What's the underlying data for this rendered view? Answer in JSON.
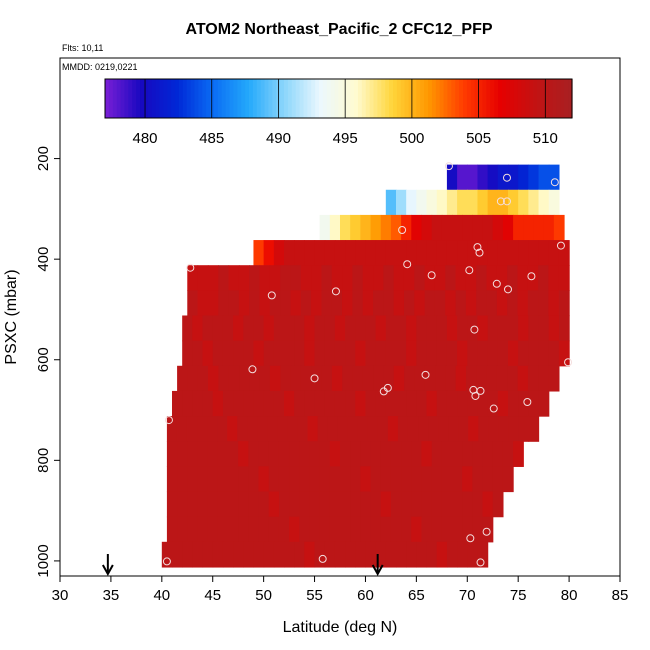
{
  "chart_data": {
    "type": "heatmap",
    "title": "ATOM2 Northeast_Pacific_2 CFC12_PFP",
    "flights_note": "Flts: 10,11",
    "date_note": "MMDD: 0219,0221",
    "xlabel": "Latitude (deg N)",
    "ylabel": "PSXC (mbar)",
    "xlim": [
      30,
      85
    ],
    "ylim": [
      1030,
      0
    ],
    "x_ticks": [
      30,
      35,
      40,
      45,
      50,
      55,
      60,
      65,
      70,
      75,
      80,
      85
    ],
    "y_ticks": [
      200,
      400,
      600,
      800,
      1000
    ],
    "colorbar": {
      "min": 477,
      "max": 512,
      "ticks": [
        480,
        485,
        490,
        495,
        500,
        505,
        510
      ],
      "colors": [
        "#7a1fd6",
        "#1808c0",
        "#0027d6",
        "#0a6cf4",
        "#24a9fb",
        "#8cd6fb",
        "#ecf8fe",
        "#fffbcf",
        "#ffd53a",
        "#ff9800",
        "#ff3b00",
        "#e60000",
        "#c21313",
        "#a82022"
      ]
    },
    "bands": [
      {
        "p_top": 212,
        "p_bot": 262,
        "lat_start": 68.0,
        "lat_end": 79.0,
        "values": [
          480,
          478,
          478,
          479,
          480,
          481,
          481,
          482,
          483,
          484,
          484
        ]
      },
      {
        "p_top": 262,
        "p_bot": 312,
        "lat_start": 62.0,
        "lat_end": 79.0,
        "values": [
          489,
          491,
          493,
          494,
          495,
          496,
          497,
          498,
          498,
          499,
          500,
          500,
          499,
          498,
          497,
          496,
          495
        ]
      },
      {
        "p_top": 312,
        "p_bot": 362,
        "lat_start": 55.5,
        "lat_end": 79.5,
        "values": [
          494,
          496,
          498,
          499,
          500,
          501,
          502,
          503,
          505,
          507,
          508,
          509,
          509,
          509,
          509,
          509,
          509,
          508,
          507,
          505,
          505,
          505,
          505,
          504
        ]
      },
      {
        "p_top": 362,
        "p_bot": 412,
        "lat_start": 49.0,
        "lat_end": 80.0,
        "values": [
          504,
          506,
          508,
          509,
          509,
          509,
          509,
          509,
          509,
          509,
          509,
          509,
          509,
          509,
          509,
          509,
          509,
          509,
          509,
          509,
          509,
          509,
          509,
          509,
          509,
          509,
          509,
          509,
          509,
          509,
          509
        ]
      },
      {
        "p_top": 412,
        "p_bot": 462,
        "lat_start": 42.5,
        "lat_end": 80.0,
        "values": [
          509,
          509,
          509,
          510,
          509,
          509,
          510,
          509,
          509,
          510,
          510,
          509,
          509,
          510,
          509,
          509,
          510,
          509,
          509,
          510,
          509,
          509,
          510,
          509,
          509,
          510,
          509,
          509,
          510,
          509,
          509,
          510,
          509,
          509,
          510,
          509,
          509
        ]
      },
      {
        "p_top": 462,
        "p_bot": 512,
        "lat_start": 42.5,
        "lat_end": 80.0,
        "values": [
          510,
          509,
          509,
          510,
          510,
          509,
          510,
          509,
          510,
          510,
          509,
          510,
          509,
          510,
          510,
          509,
          510,
          509,
          510,
          510,
          509,
          510,
          509,
          510,
          510,
          509,
          510,
          509,
          510,
          510,
          509,
          510,
          509,
          510,
          510,
          509,
          510
        ]
      },
      {
        "p_top": 512,
        "p_bot": 562,
        "lat_start": 42.0,
        "lat_end": 80.0,
        "values": [
          510,
          509,
          510,
          510,
          510,
          509,
          510,
          510,
          509,
          510,
          510,
          510,
          509,
          510,
          510,
          509,
          510,
          510,
          510,
          509,
          510,
          510,
          509,
          510,
          510,
          510,
          509,
          510,
          510,
          509,
          510,
          510,
          510,
          509,
          510,
          510,
          509,
          510
        ]
      },
      {
        "p_top": 562,
        "p_bot": 612,
        "lat_start": 42.0,
        "lat_end": 80.0,
        "values": [
          510,
          510,
          509,
          510,
          510,
          510,
          510,
          509,
          510,
          510,
          510,
          510,
          509,
          510,
          510,
          510,
          510,
          509,
          510,
          510,
          510,
          510,
          509,
          510,
          510,
          510,
          510,
          509,
          510,
          510,
          510,
          510,
          509,
          510,
          510,
          510,
          510,
          509
        ]
      },
      {
        "p_top": 612,
        "p_bot": 662,
        "lat_start": 41.5,
        "lat_end": 79.0,
        "values": [
          510,
          510,
          510,
          509,
          510,
          510,
          510,
          510,
          510,
          509,
          510,
          510,
          510,
          510,
          510,
          509,
          510,
          510,
          510,
          510,
          510,
          509,
          510,
          510,
          510,
          510,
          510,
          509,
          510,
          510,
          510,
          510,
          510,
          509,
          510,
          510,
          510
        ]
      },
      {
        "p_top": 662,
        "p_bot": 712,
        "lat_start": 41.0,
        "lat_end": 78.0,
        "values": [
          510,
          510,
          510,
          510,
          509,
          510,
          510,
          510,
          510,
          510,
          510,
          509,
          510,
          510,
          510,
          510,
          510,
          510,
          509,
          510,
          510,
          510,
          510,
          510,
          510,
          509,
          510,
          510,
          510,
          510,
          510,
          510,
          509,
          510,
          510,
          510,
          510
        ]
      },
      {
        "p_top": 712,
        "p_bot": 762,
        "lat_start": 40.5,
        "lat_end": 77.0,
        "values": [
          510,
          510,
          510,
          510,
          510,
          510,
          509,
          510,
          510,
          510,
          510,
          510,
          510,
          510,
          509,
          510,
          510,
          510,
          510,
          510,
          510,
          510,
          509,
          510,
          510,
          510,
          510,
          510,
          510,
          510,
          509,
          510,
          510,
          510,
          510,
          510,
          510
        ]
      },
      {
        "p_top": 762,
        "p_bot": 812,
        "lat_start": 40.5,
        "lat_end": 75.5,
        "values": [
          510,
          510,
          510,
          510,
          510,
          510,
          510,
          509,
          510,
          510,
          510,
          510,
          510,
          510,
          510,
          510,
          509,
          510,
          510,
          510,
          510,
          510,
          510,
          510,
          510,
          509,
          510,
          510,
          510,
          510,
          510,
          510,
          510,
          510,
          509
        ]
      },
      {
        "p_top": 812,
        "p_bot": 862,
        "lat_start": 40.5,
        "lat_end": 74.5,
        "values": [
          510,
          510,
          510,
          510,
          510,
          510,
          510,
          510,
          510,
          509,
          510,
          510,
          510,
          510,
          510,
          510,
          510,
          510,
          510,
          509,
          510,
          510,
          510,
          510,
          510,
          510,
          510,
          510,
          510,
          509,
          510,
          510,
          510,
          510
        ]
      },
      {
        "p_top": 862,
        "p_bot": 912,
        "lat_start": 40.5,
        "lat_end": 73.5,
        "values": [
          510,
          510,
          510,
          510,
          510,
          510,
          510,
          510,
          510,
          510,
          509,
          510,
          510,
          510,
          510,
          510,
          510,
          510,
          510,
          510,
          510,
          509,
          510,
          510,
          510,
          510,
          510,
          510,
          510,
          510,
          510,
          509,
          510
        ]
      },
      {
        "p_top": 912,
        "p_bot": 962,
        "lat_start": 40.5,
        "lat_end": 72.5,
        "values": [
          510,
          510,
          510,
          510,
          510,
          510,
          510,
          510,
          510,
          510,
          510,
          510,
          509,
          510,
          510,
          510,
          510,
          510,
          510,
          510,
          510,
          510,
          510,
          510,
          509,
          510,
          510,
          510,
          510,
          510,
          510,
          510
        ]
      },
      {
        "p_top": 962,
        "p_bot": 1012,
        "lat_start": 40.0,
        "lat_end": 72.0,
        "values": [
          510,
          510,
          510,
          510,
          510,
          510,
          510,
          510,
          510,
          510,
          510,
          510,
          510,
          510,
          509,
          510,
          510,
          510,
          510,
          510,
          510,
          510,
          510,
          510,
          510,
          510,
          510,
          509,
          510,
          510,
          510,
          510
        ]
      }
    ],
    "sample_points": [
      {
        "lat": 68.2,
        "p": 215
      },
      {
        "lat": 73.9,
        "p": 238
      },
      {
        "lat": 78.6,
        "p": 247
      },
      {
        "lat": 73.3,
        "p": 285
      },
      {
        "lat": 73.9,
        "p": 285
      },
      {
        "lat": 63.6,
        "p": 342
      },
      {
        "lat": 79.2,
        "p": 373
      },
      {
        "lat": 71.0,
        "p": 376
      },
      {
        "lat": 71.2,
        "p": 387
      },
      {
        "lat": 42.8,
        "p": 417
      },
      {
        "lat": 64.1,
        "p": 410
      },
      {
        "lat": 70.2,
        "p": 422
      },
      {
        "lat": 66.5,
        "p": 432
      },
      {
        "lat": 76.3,
        "p": 434
      },
      {
        "lat": 72.9,
        "p": 449
      },
      {
        "lat": 74.0,
        "p": 460
      },
      {
        "lat": 57.1,
        "p": 464
      },
      {
        "lat": 50.8,
        "p": 472
      },
      {
        "lat": 70.7,
        "p": 540
      },
      {
        "lat": 79.9,
        "p": 605
      },
      {
        "lat": 48.9,
        "p": 619
      },
      {
        "lat": 65.9,
        "p": 630
      },
      {
        "lat": 55.0,
        "p": 637
      },
      {
        "lat": 62.2,
        "p": 656
      },
      {
        "lat": 61.8,
        "p": 663
      },
      {
        "lat": 70.6,
        "p": 660
      },
      {
        "lat": 71.3,
        "p": 662
      },
      {
        "lat": 70.8,
        "p": 672
      },
      {
        "lat": 75.9,
        "p": 684
      },
      {
        "lat": 72.6,
        "p": 697
      },
      {
        "lat": 40.7,
        "p": 720
      },
      {
        "lat": 71.9,
        "p": 942
      },
      {
        "lat": 70.3,
        "p": 955
      },
      {
        "lat": 55.8,
        "p": 996
      },
      {
        "lat": 40.5,
        "p": 1001
      },
      {
        "lat": 71.3,
        "p": 1003
      }
    ],
    "arrows": [
      {
        "lat": 34.7
      },
      {
        "lat": 61.2
      }
    ]
  }
}
